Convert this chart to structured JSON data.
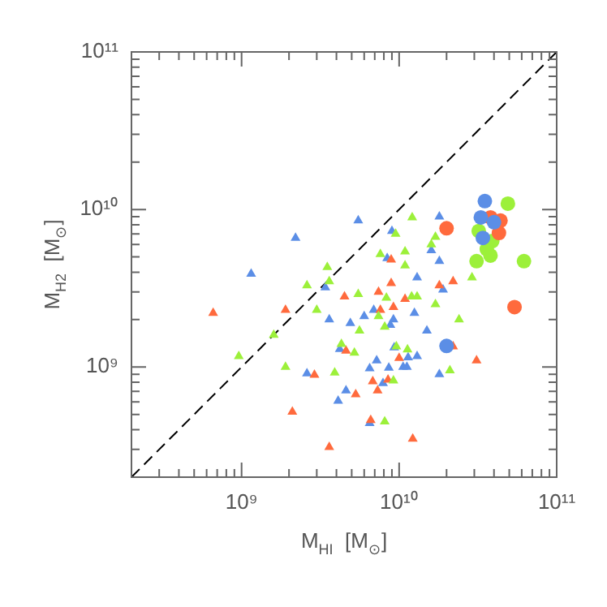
{
  "chart_data": {
    "type": "scatter",
    "xlabel": "M$_{HI}$  [M$_{⊙}$]",
    "ylabel": "M$_{H2}$  [M$_{⊙}$]",
    "log": "xy",
    "grid": false,
    "legend": false,
    "xlim": [
      200000000.0,
      100000000000.0
    ],
    "ylim": [
      200000000.0,
      100000000000.0
    ],
    "xticks": [
      {
        "value": 200000000.0,
        "label": null
      },
      {
        "value": 300000000.0,
        "label": null
      },
      {
        "value": 400000000.0,
        "label": null
      },
      {
        "value": 500000000.0,
        "label": null
      },
      {
        "value": 600000000.0,
        "label": null
      },
      {
        "value": 700000000.0,
        "label": null
      },
      {
        "value": 800000000.0,
        "label": null
      },
      {
        "value": 900000000.0,
        "label": null
      },
      {
        "value": 1000000000.0,
        "label": "10⁹"
      },
      {
        "value": 2000000000.0,
        "label": null
      },
      {
        "value": 3000000000.0,
        "label": null
      },
      {
        "value": 4000000000.0,
        "label": null
      },
      {
        "value": 5000000000.0,
        "label": null
      },
      {
        "value": 6000000000.0,
        "label": null
      },
      {
        "value": 7000000000.0,
        "label": null
      },
      {
        "value": 8000000000.0,
        "label": null
      },
      {
        "value": 9000000000.0,
        "label": null
      },
      {
        "value": 10000000000.0,
        "label": "10¹⁰"
      },
      {
        "value": 20000000000.0,
        "label": null
      },
      {
        "value": 30000000000.0,
        "label": null
      },
      {
        "value": 40000000000.0,
        "label": null
      },
      {
        "value": 50000000000.0,
        "label": null
      },
      {
        "value": 60000000000.0,
        "label": null
      },
      {
        "value": 70000000000.0,
        "label": null
      },
      {
        "value": 80000000000.0,
        "label": null
      },
      {
        "value": 90000000000.0,
        "label": null
      },
      {
        "value": 100000000000.0,
        "label": "10¹¹"
      }
    ],
    "yticks": [
      {
        "value": 200000000.0,
        "label": null
      },
      {
        "value": 300000000.0,
        "label": null
      },
      {
        "value": 400000000.0,
        "label": null
      },
      {
        "value": 500000000.0,
        "label": null
      },
      {
        "value": 600000000.0,
        "label": null
      },
      {
        "value": 700000000.0,
        "label": null
      },
      {
        "value": 800000000.0,
        "label": null
      },
      {
        "value": 900000000.0,
        "label": null
      },
      {
        "value": 1000000000.0,
        "label": "10⁹"
      },
      {
        "value": 2000000000.0,
        "label": null
      },
      {
        "value": 3000000000.0,
        "label": null
      },
      {
        "value": 4000000000.0,
        "label": null
      },
      {
        "value": 5000000000.0,
        "label": null
      },
      {
        "value": 6000000000.0,
        "label": null
      },
      {
        "value": 7000000000.0,
        "label": null
      },
      {
        "value": 8000000000.0,
        "label": null
      },
      {
        "value": 9000000000.0,
        "label": null
      },
      {
        "value": 10000000000.0,
        "label": "10¹⁰"
      },
      {
        "value": 20000000000.0,
        "label": null
      },
      {
        "value": 30000000000.0,
        "label": null
      },
      {
        "value": 40000000000.0,
        "label": null
      },
      {
        "value": 50000000000.0,
        "label": null
      },
      {
        "value": 60000000000.0,
        "label": null
      },
      {
        "value": 70000000000.0,
        "label": null
      },
      {
        "value": 80000000000.0,
        "label": null
      },
      {
        "value": 90000000000.0,
        "label": null
      },
      {
        "value": 100000000000.0,
        "label": "10¹¹"
      }
    ],
    "series": [
      {
        "type": "line",
        "color": "#000000",
        "line_style": "dashed",
        "marker": "none",
        "x": [
          200000000.0,
          100000000000.0
        ],
        "values": [
          200000000.0,
          100000000000.0
        ]
      },
      {
        "color": "#5b8ee6",
        "marker": "triangle",
        "x": [
          5500000000.0,
          2200000000.0,
          1150000000.0,
          18000000000.0,
          9000000000.0,
          3400000000.0,
          8400000000.0,
          16000000000.0,
          18000000000.0,
          13000000000.0,
          19000000000.0,
          3600000000.0,
          4900000000.0,
          6000000000.0,
          6900000000.0,
          8800000000.0,
          9200000000.0,
          12500000000.0,
          15000000000.0,
          4200000000.0,
          7200000000.0,
          9300000000.0,
          11400000000.0,
          13000000000.0,
          8600000000.0,
          10600000000.0,
          11200000000.0,
          6500000000.0,
          2600000000.0,
          4600000000.0,
          4100000000.0,
          7900000000.0,
          18000000000.0,
          6500000000.0
        ],
        "values": [
          8500000000.0,
          6600000000.0,
          3900000000.0,
          9000000000.0,
          7300000000.0,
          3200000000.0,
          4900000000.0,
          5500000000.0,
          4700000000.0,
          3700000000.0,
          3100000000.0,
          2000000000.0,
          1900000000.0,
          2100000000.0,
          2300000000.0,
          1850000000.0,
          2000000000.0,
          2200000000.0,
          1700000000.0,
          1300000000.0,
          1100000000.0,
          1330000000.0,
          1150000000.0,
          1170000000.0,
          990000000.0,
          1000000000.0,
          1000000000.0,
          980000000.0,
          910000000.0,
          710000000.0,
          610000000.0,
          790000000.0,
          900000000.0,
          440000000.0
        ]
      },
      {
        "color": "#ff6a3d",
        "marker": "triangle",
        "x": [
          660000000.0,
          1900000000.0,
          4500000000.0,
          7400000000.0,
          8900000000.0,
          8900000000.0,
          7600000000.0,
          9200000000.0,
          10900000000.0,
          18000000000.0,
          22000000000.0,
          4600000000.0,
          10000000000.0,
          22000000000.0,
          31000000000.0,
          2900000000.0,
          5300000000.0,
          6800000000.0,
          7300000000.0,
          8500000000.0,
          2100000000.0,
          6600000000.0,
          3600000000.0,
          12200000000.0
        ],
        "values": [
          2200000000.0,
          2300000000.0,
          2800000000.0,
          3000000000.0,
          4800000000.0,
          3400000000.0,
          2300000000.0,
          2400000000.0,
          2700000000.0,
          3300000000.0,
          3500000000.0,
          1270000000.0,
          1140000000.0,
          1350000000.0,
          1100000000.0,
          890000000.0,
          670000000.0,
          810000000.0,
          710000000.0,
          830000000.0,
          520000000.0,
          460000000.0,
          310000000.0,
          350000000.0
        ]
      },
      {
        "color": "#9cf03a",
        "marker": "triangle",
        "x": [
          12100000000.0,
          9500000000.0,
          17000000000.0,
          16000000000.0,
          7600000000.0,
          10900000000.0,
          10900000000.0,
          3500000000.0,
          2600000000.0,
          3600000000.0,
          5500000000.0,
          8300000000.0,
          12000000000.0,
          13000000000.0,
          17000000000.0,
          29000000000.0,
          3000000000.0,
          7400000000.0,
          5600000000.0,
          8100000000.0,
          24000000000.0,
          1600000000.0,
          960000000.0,
          1900000000.0,
          4300000000.0,
          5200000000.0,
          9600000000.0,
          11300000000.0,
          3900000000.0,
          9200000000.0,
          21000000000.0,
          8100000000.0
        ],
        "values": [
          8900000000.0,
          7000000000.0,
          6700000000.0,
          6000000000.0,
          5200000000.0,
          5400000000.0,
          4400000000.0,
          4300000000.0,
          3300000000.0,
          3500000000.0,
          2900000000.0,
          2750000000.0,
          2800000000.0,
          2800000000.0,
          2500000000.0,
          3700000000.0,
          2300000000.0,
          2100000000.0,
          1700000000.0,
          1800000000.0,
          2000000000.0,
          1600000000.0,
          1170000000.0,
          1000000000.0,
          1400000000.0,
          1230000000.0,
          1350000000.0,
          1290000000.0,
          920000000.0,
          820000000.0,
          950000000.0,
          450000000.0
        ]
      },
      {
        "color": "#9cf03a",
        "marker": "circle",
        "x": [
          49000000000.0,
          32000000000.0,
          39000000000.0,
          36000000000.0,
          38000000000.0,
          31000000000.0,
          62000000000.0
        ],
        "values": [
          10900000000.0,
          7300000000.0,
          6300000000.0,
          5600000000.0,
          5100000000.0,
          4700000000.0,
          4700000000.0
        ]
      },
      {
        "color": "#ff6a3d",
        "marker": "circle",
        "x": [
          20000000000.0,
          38000000000.0,
          44000000000.0,
          43000000000.0,
          54000000000.0
        ],
        "values": [
          7600000000.0,
          8900000000.0,
          8500000000.0,
          7100000000.0,
          2400000000.0
        ]
      },
      {
        "color": "#5b8ee6",
        "marker": "circle",
        "x": [
          35000000000.0,
          33000000000.0,
          40000000000.0,
          34000000000.0,
          20000000000.0
        ],
        "values": [
          11300000000.0,
          8900000000.0,
          8300000000.0,
          6600000000.0,
          1360000000.0
        ]
      }
    ]
  }
}
